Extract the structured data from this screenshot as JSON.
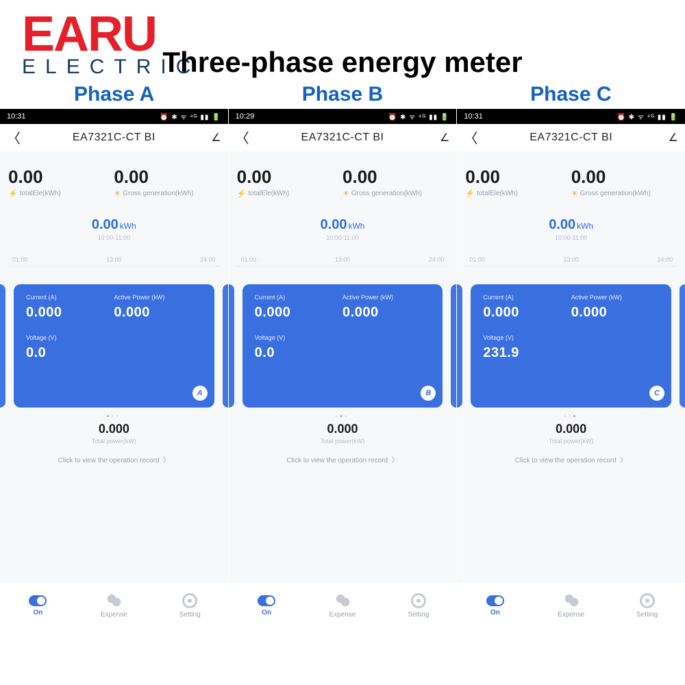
{
  "brand": {
    "top": "EARU",
    "bottom": "ELECTRIC"
  },
  "title": "Three-phase energy meter",
  "phase_labels": [
    "Phase A",
    "Phase B",
    "Phase C"
  ],
  "common": {
    "device_title": "EA7321C-CT BI",
    "total_ele_label": "totalEle(kWh)",
    "gross_gen_label": "Gross generation(kWh)",
    "chart_unit": "kWh",
    "chart_timerange": "10:00-11:00",
    "axis": [
      "01:00",
      "13:00",
      "24:00"
    ],
    "current_label": "Current (A)",
    "power_label": "Active Power (kW)",
    "voltage_label": "Voltage (V)",
    "total_power_label": "Total power(kW)",
    "op_record": "Click to view the operation record",
    "nav": {
      "on": "On",
      "expense": "Expense",
      "setting": "Setting"
    }
  },
  "phones": [
    {
      "time": "10:31",
      "total_ele": "0.00",
      "gross_gen": "0.00",
      "chart_val": "0.00",
      "current": "0.000",
      "power": "0.000",
      "voltage": "0.0",
      "badge": "A",
      "dot_index": 0,
      "total_power": "0.000"
    },
    {
      "time": "10:29",
      "total_ele": "0.00",
      "gross_gen": "0.00",
      "chart_val": "0.00",
      "current": "0.000",
      "power": "0.000",
      "voltage": "0.0",
      "badge": "B",
      "dot_index": 1,
      "total_power": "0.000"
    },
    {
      "time": "10:31",
      "total_ele": "0.00",
      "gross_gen": "0.00",
      "chart_val": "0.00",
      "current": "0.000",
      "power": "0.000",
      "voltage": "231.9",
      "badge": "C",
      "dot_index": 2,
      "total_power": "0.000"
    }
  ]
}
